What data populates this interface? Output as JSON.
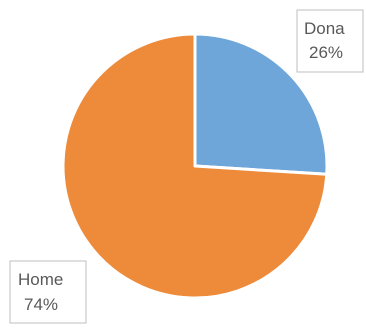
{
  "chart_data": {
    "type": "pie",
    "slices": [
      {
        "name": "Dona",
        "value": 26,
        "label": "26%",
        "color": "#6ea6d9"
      },
      {
        "name": "Home",
        "value": 74,
        "label": "74%",
        "color": "#ed8b3a"
      }
    ],
    "start_angle_deg": 0,
    "direction": "clockwise",
    "legend": "none",
    "data_labels": "callout-boxes"
  }
}
